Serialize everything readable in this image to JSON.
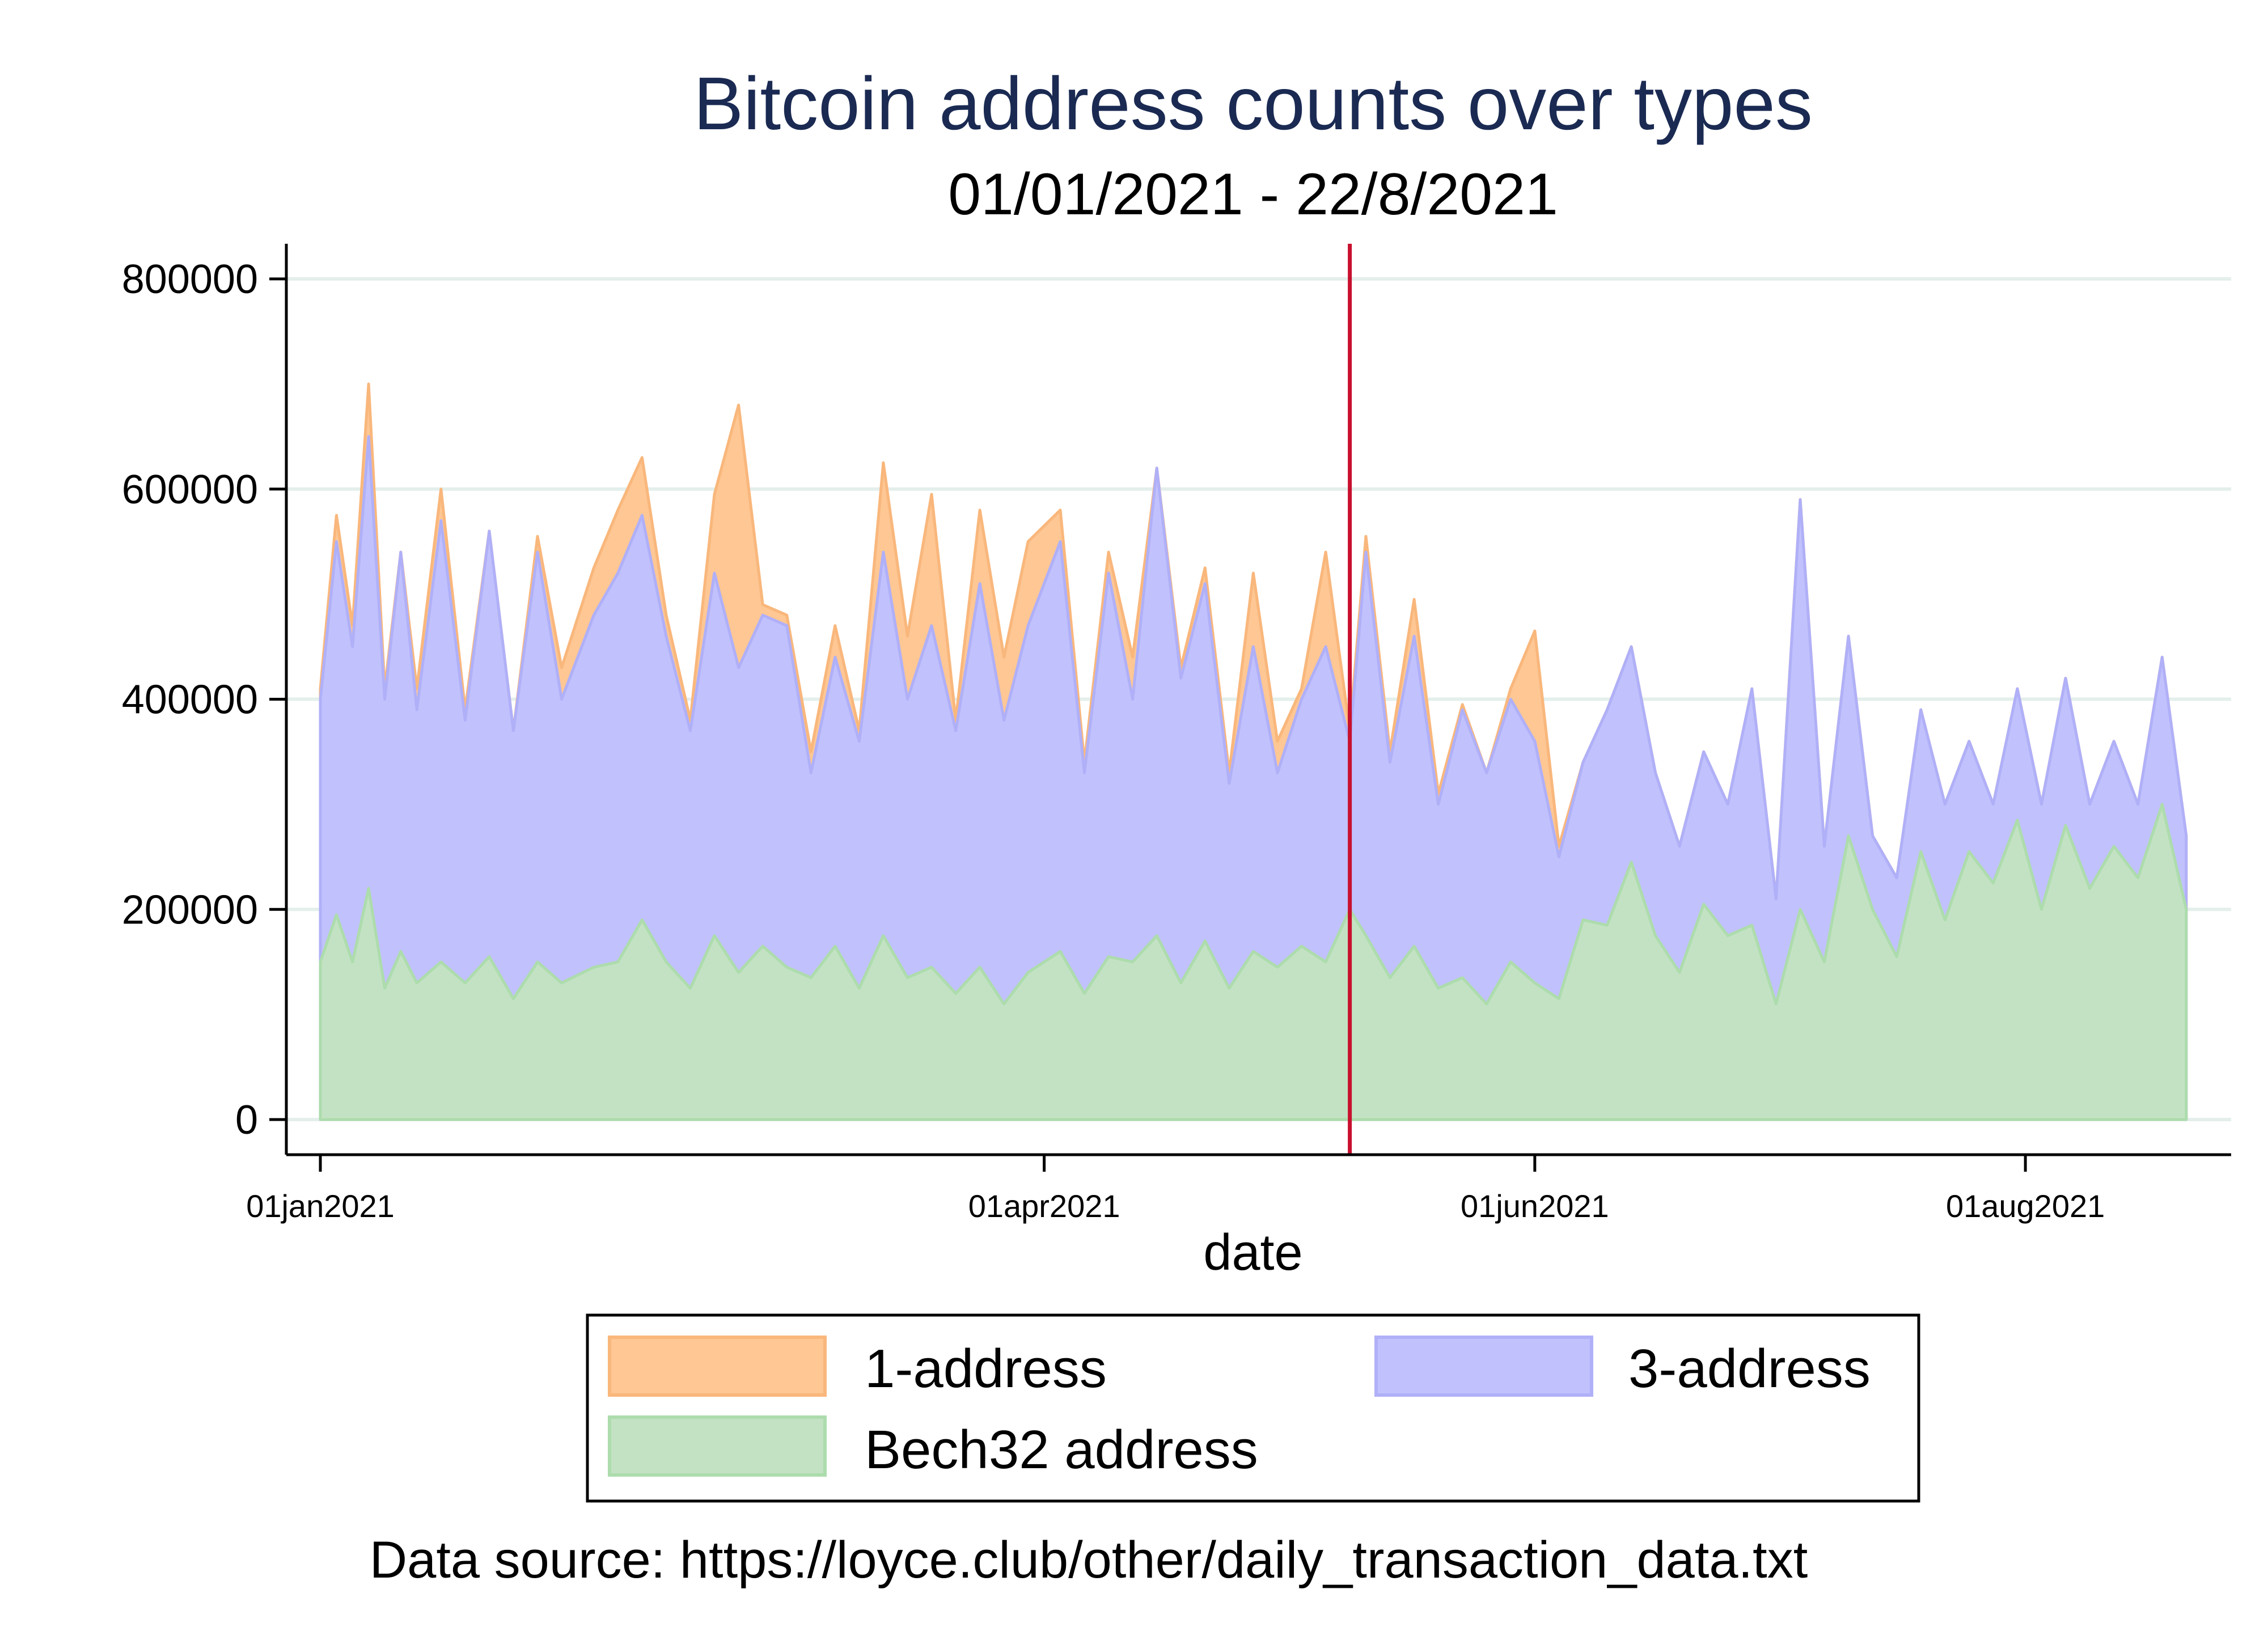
{
  "chart_data": {
    "type": "area",
    "stacked": true,
    "title": "Bitcoin address counts over types",
    "subtitle": "01/01/2021 - 22/8/2021",
    "xlabel": "date",
    "ylabel": "",
    "x_range": [
      "2021-01-01",
      "2021-08-22"
    ],
    "ylim": [
      0,
      800000
    ],
    "y_ticks": [
      0,
      200000,
      400000,
      600000,
      800000
    ],
    "y_tick_labels": [
      "0",
      "200000",
      "400000",
      "600000",
      "800000"
    ],
    "x_ticks": [
      "2021-01-01",
      "2021-04-01",
      "2021-06-01",
      "2021-08-01"
    ],
    "x_tick_labels": [
      "01jan2021",
      "01apr2021",
      "01jun2021",
      "01aug2021"
    ],
    "grid": true,
    "legend_position": "bottom",
    "vertical_line": {
      "date": "2021-05-09",
      "color": "#c8102e"
    },
    "colors": {
      "one_address": "#fec794",
      "three_address": "#c1c1fd",
      "bech32": "#c3e2c3"
    },
    "series": [
      {
        "name": "Bech32 address",
        "layer": "bottom",
        "points": [
          [
            "2021-01-01",
            150000
          ],
          [
            "2021-01-03",
            195000
          ],
          [
            "2021-01-05",
            150000
          ],
          [
            "2021-01-07",
            220000
          ],
          [
            "2021-01-09",
            125000
          ],
          [
            "2021-01-11",
            160000
          ],
          [
            "2021-01-13",
            130000
          ],
          [
            "2021-01-16",
            150000
          ],
          [
            "2021-01-19",
            130000
          ],
          [
            "2021-01-22",
            155000
          ],
          [
            "2021-01-25",
            115000
          ],
          [
            "2021-01-28",
            150000
          ],
          [
            "2021-01-31",
            130000
          ],
          [
            "2021-02-04",
            145000
          ],
          [
            "2021-02-07",
            150000
          ],
          [
            "2021-02-10",
            190000
          ],
          [
            "2021-02-13",
            150000
          ],
          [
            "2021-02-16",
            125000
          ],
          [
            "2021-02-19",
            175000
          ],
          [
            "2021-02-22",
            140000
          ],
          [
            "2021-02-25",
            165000
          ],
          [
            "2021-02-28",
            145000
          ],
          [
            "2021-03-03",
            135000
          ],
          [
            "2021-03-06",
            165000
          ],
          [
            "2021-03-09",
            125000
          ],
          [
            "2021-03-12",
            175000
          ],
          [
            "2021-03-15",
            135000
          ],
          [
            "2021-03-18",
            145000
          ],
          [
            "2021-03-21",
            120000
          ],
          [
            "2021-03-24",
            145000
          ],
          [
            "2021-03-27",
            110000
          ],
          [
            "2021-03-30",
            140000
          ],
          [
            "2021-04-03",
            160000
          ],
          [
            "2021-04-06",
            120000
          ],
          [
            "2021-04-09",
            155000
          ],
          [
            "2021-04-12",
            150000
          ],
          [
            "2021-04-15",
            175000
          ],
          [
            "2021-04-18",
            130000
          ],
          [
            "2021-04-21",
            170000
          ],
          [
            "2021-04-24",
            125000
          ],
          [
            "2021-04-27",
            160000
          ],
          [
            "2021-04-30",
            145000
          ],
          [
            "2021-05-03",
            165000
          ],
          [
            "2021-05-06",
            150000
          ],
          [
            "2021-05-09",
            200000
          ],
          [
            "2021-05-11",
            175000
          ],
          [
            "2021-05-14",
            135000
          ],
          [
            "2021-05-17",
            165000
          ],
          [
            "2021-05-20",
            125000
          ],
          [
            "2021-05-23",
            135000
          ],
          [
            "2021-05-26",
            110000
          ],
          [
            "2021-05-29",
            150000
          ],
          [
            "2021-06-01",
            130000
          ],
          [
            "2021-06-04",
            115000
          ],
          [
            "2021-06-07",
            190000
          ],
          [
            "2021-06-10",
            185000
          ],
          [
            "2021-06-13",
            245000
          ],
          [
            "2021-06-16",
            175000
          ],
          [
            "2021-06-19",
            140000
          ],
          [
            "2021-06-22",
            205000
          ],
          [
            "2021-06-25",
            175000
          ],
          [
            "2021-06-28",
            185000
          ],
          [
            "2021-07-01",
            110000
          ],
          [
            "2021-07-04",
            200000
          ],
          [
            "2021-07-07",
            150000
          ],
          [
            "2021-07-10",
            270000
          ],
          [
            "2021-07-13",
            200000
          ],
          [
            "2021-07-16",
            155000
          ],
          [
            "2021-07-19",
            255000
          ],
          [
            "2021-07-22",
            190000
          ],
          [
            "2021-07-25",
            255000
          ],
          [
            "2021-07-28",
            225000
          ],
          [
            "2021-07-31",
            285000
          ],
          [
            "2021-08-03",
            200000
          ],
          [
            "2021-08-06",
            280000
          ],
          [
            "2021-08-09",
            220000
          ],
          [
            "2021-08-12",
            260000
          ],
          [
            "2021-08-15",
            230000
          ],
          [
            "2021-08-18",
            300000
          ],
          [
            "2021-08-21",
            200000
          ]
        ]
      },
      {
        "name": "3-address",
        "layer": "middle",
        "points": [
          [
            "2021-01-01",
            400000
          ],
          [
            "2021-01-03",
            550000
          ],
          [
            "2021-01-05",
            450000
          ],
          [
            "2021-01-07",
            650000
          ],
          [
            "2021-01-09",
            400000
          ],
          [
            "2021-01-11",
            540000
          ],
          [
            "2021-01-13",
            390000
          ],
          [
            "2021-01-16",
            570000
          ],
          [
            "2021-01-19",
            380000
          ],
          [
            "2021-01-22",
            560000
          ],
          [
            "2021-01-25",
            370000
          ],
          [
            "2021-01-28",
            540000
          ],
          [
            "2021-01-31",
            400000
          ],
          [
            "2021-02-04",
            480000
          ],
          [
            "2021-02-07",
            520000
          ],
          [
            "2021-02-10",
            575000
          ],
          [
            "2021-02-13",
            460000
          ],
          [
            "2021-02-16",
            370000
          ],
          [
            "2021-02-19",
            520000
          ],
          [
            "2021-02-22",
            430000
          ],
          [
            "2021-02-25",
            480000
          ],
          [
            "2021-02-28",
            470000
          ],
          [
            "2021-03-03",
            330000
          ],
          [
            "2021-03-06",
            440000
          ],
          [
            "2021-03-09",
            360000
          ],
          [
            "2021-03-12",
            540000
          ],
          [
            "2021-03-15",
            400000
          ],
          [
            "2021-03-18",
            470000
          ],
          [
            "2021-03-21",
            370000
          ],
          [
            "2021-03-24",
            510000
          ],
          [
            "2021-03-27",
            380000
          ],
          [
            "2021-03-30",
            470000
          ],
          [
            "2021-04-03",
            550000
          ],
          [
            "2021-04-06",
            330000
          ],
          [
            "2021-04-09",
            520000
          ],
          [
            "2021-04-12",
            400000
          ],
          [
            "2021-04-15",
            620000
          ],
          [
            "2021-04-18",
            420000
          ],
          [
            "2021-04-21",
            510000
          ],
          [
            "2021-04-24",
            320000
          ],
          [
            "2021-04-27",
            450000
          ],
          [
            "2021-04-30",
            330000
          ],
          [
            "2021-05-03",
            400000
          ],
          [
            "2021-05-06",
            450000
          ],
          [
            "2021-05-09",
            360000
          ],
          [
            "2021-05-11",
            540000
          ],
          [
            "2021-05-14",
            340000
          ],
          [
            "2021-05-17",
            460000
          ],
          [
            "2021-05-20",
            300000
          ],
          [
            "2021-05-23",
            390000
          ],
          [
            "2021-05-26",
            330000
          ],
          [
            "2021-05-29",
            400000
          ],
          [
            "2021-06-01",
            360000
          ],
          [
            "2021-06-04",
            250000
          ],
          [
            "2021-06-07",
            340000
          ],
          [
            "2021-06-10",
            390000
          ],
          [
            "2021-06-13",
            450000
          ],
          [
            "2021-06-16",
            330000
          ],
          [
            "2021-06-19",
            260000
          ],
          [
            "2021-06-22",
            350000
          ],
          [
            "2021-06-25",
            300000
          ],
          [
            "2021-06-28",
            410000
          ],
          [
            "2021-07-01",
            210000
          ],
          [
            "2021-07-04",
            590000
          ],
          [
            "2021-07-07",
            260000
          ],
          [
            "2021-07-10",
            460000
          ],
          [
            "2021-07-13",
            270000
          ],
          [
            "2021-07-16",
            230000
          ],
          [
            "2021-07-19",
            390000
          ],
          [
            "2021-07-22",
            300000
          ],
          [
            "2021-07-25",
            360000
          ],
          [
            "2021-07-28",
            300000
          ],
          [
            "2021-07-31",
            410000
          ],
          [
            "2021-08-03",
            300000
          ],
          [
            "2021-08-06",
            420000
          ],
          [
            "2021-08-09",
            300000
          ],
          [
            "2021-08-12",
            360000
          ],
          [
            "2021-08-15",
            300000
          ],
          [
            "2021-08-18",
            440000
          ],
          [
            "2021-08-21",
            270000
          ]
        ]
      },
      {
        "name": "1-address",
        "layer": "top",
        "points": [
          [
            "2021-01-01",
            410000
          ],
          [
            "2021-01-03",
            575000
          ],
          [
            "2021-01-05",
            470000
          ],
          [
            "2021-01-07",
            700000
          ],
          [
            "2021-01-09",
            410000
          ],
          [
            "2021-01-11",
            540000
          ],
          [
            "2021-01-13",
            410000
          ],
          [
            "2021-01-16",
            600000
          ],
          [
            "2021-01-19",
            390000
          ],
          [
            "2021-01-22",
            560000
          ],
          [
            "2021-01-25",
            370000
          ],
          [
            "2021-01-28",
            555000
          ],
          [
            "2021-01-31",
            430000
          ],
          [
            "2021-02-04",
            525000
          ],
          [
            "2021-02-07",
            580000
          ],
          [
            "2021-02-10",
            630000
          ],
          [
            "2021-02-13",
            480000
          ],
          [
            "2021-02-16",
            380000
          ],
          [
            "2021-02-19",
            595000
          ],
          [
            "2021-02-22",
            680000
          ],
          [
            "2021-02-25",
            490000
          ],
          [
            "2021-02-28",
            480000
          ],
          [
            "2021-03-03",
            350000
          ],
          [
            "2021-03-06",
            470000
          ],
          [
            "2021-03-09",
            370000
          ],
          [
            "2021-03-12",
            625000
          ],
          [
            "2021-03-15",
            460000
          ],
          [
            "2021-03-18",
            595000
          ],
          [
            "2021-03-21",
            380000
          ],
          [
            "2021-03-24",
            580000
          ],
          [
            "2021-03-27",
            440000
          ],
          [
            "2021-03-30",
            550000
          ],
          [
            "2021-04-03",
            580000
          ],
          [
            "2021-04-06",
            340000
          ],
          [
            "2021-04-09",
            540000
          ],
          [
            "2021-04-12",
            440000
          ],
          [
            "2021-04-15",
            620000
          ],
          [
            "2021-04-18",
            430000
          ],
          [
            "2021-04-21",
            525000
          ],
          [
            "2021-04-24",
            330000
          ],
          [
            "2021-04-27",
            520000
          ],
          [
            "2021-04-30",
            360000
          ],
          [
            "2021-05-03",
            410000
          ],
          [
            "2021-05-06",
            540000
          ],
          [
            "2021-05-09",
            370000
          ],
          [
            "2021-05-11",
            555000
          ],
          [
            "2021-05-14",
            350000
          ],
          [
            "2021-05-17",
            495000
          ],
          [
            "2021-05-20",
            310000
          ],
          [
            "2021-05-23",
            395000
          ],
          [
            "2021-05-26",
            330000
          ],
          [
            "2021-05-29",
            410000
          ],
          [
            "2021-06-01",
            465000
          ],
          [
            "2021-06-04",
            260000
          ],
          [
            "2021-06-07",
            340000
          ],
          [
            "2021-06-10",
            390000
          ],
          [
            "2021-06-13",
            450000
          ],
          [
            "2021-06-16",
            330000
          ],
          [
            "2021-06-19",
            260000
          ],
          [
            "2021-06-22",
            350000
          ],
          [
            "2021-06-25",
            300000
          ],
          [
            "2021-06-28",
            410000
          ],
          [
            "2021-07-01",
            210000
          ],
          [
            "2021-07-04",
            590000
          ],
          [
            "2021-07-07",
            260000
          ],
          [
            "2021-07-10",
            460000
          ],
          [
            "2021-07-13",
            270000
          ],
          [
            "2021-07-16",
            230000
          ],
          [
            "2021-07-19",
            390000
          ],
          [
            "2021-07-22",
            300000
          ],
          [
            "2021-07-25",
            360000
          ],
          [
            "2021-07-28",
            300000
          ],
          [
            "2021-07-31",
            410000
          ],
          [
            "2021-08-03",
            300000
          ],
          [
            "2021-08-06",
            420000
          ],
          [
            "2021-08-09",
            300000
          ],
          [
            "2021-08-12",
            360000
          ],
          [
            "2021-08-15",
            300000
          ],
          [
            "2021-08-18",
            440000
          ],
          [
            "2021-08-21",
            270000
          ]
        ]
      }
    ]
  },
  "legend": {
    "items": [
      {
        "label": "1-address",
        "color": "#fec794"
      },
      {
        "label": "3-address",
        "color": "#c1c1fd"
      },
      {
        "label": "Bech32 address",
        "color": "#c3e2c3"
      }
    ]
  },
  "footnote": "Data source: https://loyce.club/other/daily_transaction_data.txt"
}
